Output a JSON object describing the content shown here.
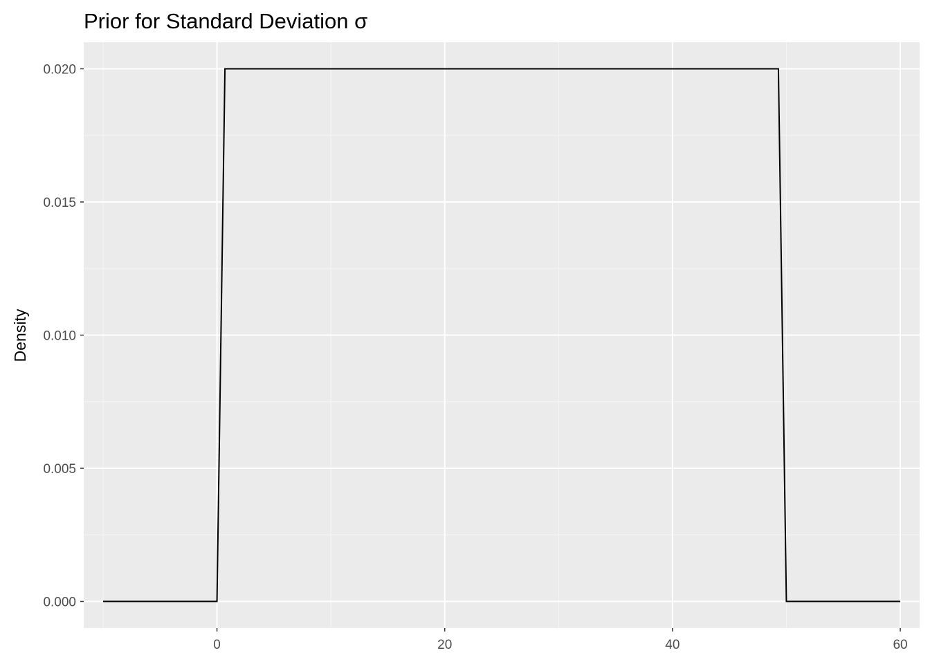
{
  "chart_data": {
    "type": "line",
    "title": "Prior for Standard Deviation σ",
    "xlabel": "",
    "ylabel": "Density",
    "xlim": [
      -11.7,
      61.7
    ],
    "ylim": [
      -0.001,
      0.021
    ],
    "x_ticks": [
      0,
      20,
      40,
      60
    ],
    "x_tick_labels": [
      "0",
      "20",
      "40",
      "60"
    ],
    "x_minor_ticks": [
      -10,
      10,
      30,
      50
    ],
    "y_ticks": [
      0.0,
      0.005,
      0.01,
      0.015,
      0.02
    ],
    "y_tick_labels": [
      "0.000",
      "0.005",
      "0.010",
      "0.015",
      "0.020"
    ],
    "y_minor_ticks": [
      0.0025,
      0.0075,
      0.0125,
      0.0175
    ],
    "grid": true,
    "colors": {
      "panel_background": "#ebebeb",
      "grid_major": "#ffffff",
      "grid_minor": "#f5f5f5",
      "line": "#000000",
      "tick_mark": "#333333"
    },
    "series": [
      {
        "x": [
          -10,
          0,
          0.7,
          49.3,
          50,
          60
        ],
        "y": [
          0,
          0,
          0.02,
          0.02,
          0,
          0
        ]
      }
    ]
  }
}
